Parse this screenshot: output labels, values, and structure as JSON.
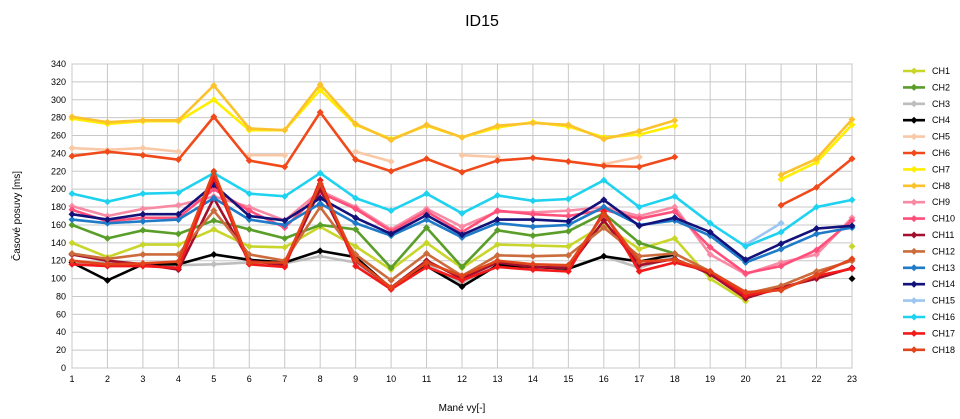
{
  "chart_data": {
    "type": "line",
    "title": "ID15",
    "xlabel": "Mané vy[-]",
    "ylabel": "Časové posuvy [ms]",
    "x": [
      1,
      2,
      3,
      4,
      5,
      6,
      7,
      8,
      9,
      10,
      11,
      12,
      13,
      14,
      15,
      16,
      17,
      18,
      19,
      20,
      21,
      22,
      23
    ],
    "xlim": [
      1,
      23
    ],
    "ylim": [
      0,
      340
    ],
    "y_ticks": [
      0,
      20,
      40,
      60,
      80,
      100,
      120,
      140,
      160,
      180,
      200,
      220,
      240,
      260,
      280,
      300,
      320,
      340
    ],
    "grid": true,
    "legend_position": "right",
    "series": [
      {
        "name": "CH1",
        "color": "#c8d62c",
        "values": [
          140,
          124,
          138,
          138,
          155,
          136,
          135,
          158,
          136,
          110,
          140,
          112,
          138,
          137,
          136,
          160,
          133,
          145,
          100,
          75,
          null,
          null,
          136
        ]
      },
      {
        "name": "CH2",
        "color": "#5a9e2a",
        "values": [
          160,
          145,
          154,
          150,
          165,
          155,
          145,
          160,
          155,
          112,
          157,
          113,
          154,
          148,
          153,
          173,
          140,
          128,
          null,
          null,
          null,
          null,
          null
        ]
      },
      {
        "name": "CH3",
        "color": "#bdbdbd",
        "values": [
          118,
          118,
          115,
          115,
          116,
          118,
          117,
          125,
          118,
          90,
          116,
          95,
          118,
          113,
          112,
          125,
          112,
          125,
          null,
          null,
          null,
          null,
          null
        ]
      },
      {
        "name": "CH4",
        "color": "#000000",
        "values": [
          118,
          98,
          116,
          116,
          127,
          121,
          118,
          131,
          124,
          89,
          114,
          91,
          115,
          113,
          111,
          125,
          119,
          127,
          null,
          null,
          null,
          null,
          100
        ]
      },
      {
        "name": "CH5",
        "color": "#f9c8a6",
        "values": [
          246,
          244,
          246,
          242,
          null,
          238,
          238,
          null,
          242,
          231,
          null,
          238,
          236,
          null,
          null,
          228,
          236,
          null,
          null,
          null,
          null,
          null,
          null
        ]
      },
      {
        "name": "CH6",
        "color": "#f14a1a",
        "values": [
          237,
          242,
          238,
          233,
          281,
          232,
          225,
          286,
          233,
          220,
          234,
          219,
          232,
          235,
          231,
          226,
          225,
          236,
          null,
          null,
          182,
          202,
          234
        ]
      },
      {
        "name": "CH7",
        "color": "#ffee00",
        "values": [
          279,
          273,
          276,
          276,
          300,
          266,
          266,
          311,
          272,
          256,
          271,
          258,
          269,
          275,
          270,
          258,
          261,
          271,
          null,
          null,
          211,
          230,
          272
        ]
      },
      {
        "name": "CH8",
        "color": "#fbc22e",
        "values": [
          281,
          275,
          277,
          277,
          316,
          268,
          266,
          317,
          273,
          255,
          272,
          258,
          271,
          274,
          272,
          256,
          265,
          277,
          null,
          null,
          216,
          234,
          278
        ]
      },
      {
        "name": "CH9",
        "color": "#f88aa4",
        "values": [
          181,
          170,
          178,
          182,
          192,
          180,
          165,
          198,
          180,
          155,
          178,
          158,
          175,
          174,
          176,
          180,
          170,
          180,
          127,
          105,
          118,
          127,
          168
        ]
      },
      {
        "name": "CH10",
        "color": "#ff4f7b",
        "values": [
          177,
          164,
          168,
          168,
          200,
          176,
          157,
          196,
          178,
          153,
          175,
          152,
          176,
          172,
          170,
          177,
          167,
          175,
          135,
          106,
          114,
          132,
          165
        ]
      },
      {
        "name": "CH11",
        "color": "#a30f2c",
        "values": [
          127,
          120,
          116,
          110,
          190,
          120,
          115,
          200,
          120,
          90,
          120,
          100,
          118,
          113,
          112,
          165,
          115,
          122,
          105,
          78,
          90,
          100,
          112
        ]
      },
      {
        "name": "CH12",
        "color": "#cc6c3c",
        "values": [
          128,
          122,
          127,
          127,
          176,
          127,
          120,
          180,
          127,
          98,
          128,
          103,
          126,
          125,
          126,
          157,
          125,
          128,
          108,
          83,
          92,
          108,
          120
        ]
      },
      {
        "name": "CH13",
        "color": "#1f7ac8",
        "values": [
          166,
          162,
          164,
          166,
          190,
          166,
          160,
          184,
          162,
          148,
          166,
          146,
          162,
          158,
          160,
          180,
          160,
          165,
          148,
          118,
          133,
          150,
          157
        ]
      },
      {
        "name": "CH14",
        "color": "#12127a",
        "values": [
          172,
          166,
          172,
          172,
          205,
          170,
          165,
          190,
          168,
          150,
          171,
          149,
          166,
          166,
          164,
          188,
          159,
          168,
          152,
          121,
          139,
          156,
          159
        ]
      },
      {
        "name": "CH15",
        "color": "#9cc6f0",
        "values": [
          null,
          null,
          null,
          null,
          null,
          null,
          null,
          null,
          null,
          null,
          null,
          null,
          null,
          null,
          null,
          null,
          null,
          null,
          null,
          138,
          162,
          null,
          null
        ]
      },
      {
        "name": "CH16",
        "color": "#1ed2f0",
        "values": [
          195,
          186,
          195,
          196,
          218,
          195,
          192,
          218,
          190,
          176,
          195,
          173,
          193,
          187,
          189,
          210,
          180,
          192,
          162,
          136,
          152,
          180,
          188
        ]
      },
      {
        "name": "CH17",
        "color": "#f21a1a",
        "values": [
          116,
          114,
          114,
          112,
          213,
          116,
          113,
          210,
          114,
          88,
          113,
          98,
          113,
          110,
          108,
          175,
          108,
          118,
          108,
          81,
          88,
          103,
          111
        ]
      },
      {
        "name": "CH18",
        "color": "#e0451c",
        "values": [
          120,
          116,
          117,
          119,
          220,
          118,
          118,
          206,
          121,
          90,
          118,
          103,
          120,
          116,
          115,
          172,
          119,
          121,
          108,
          85,
          87,
          104,
          122
        ]
      }
    ]
  }
}
